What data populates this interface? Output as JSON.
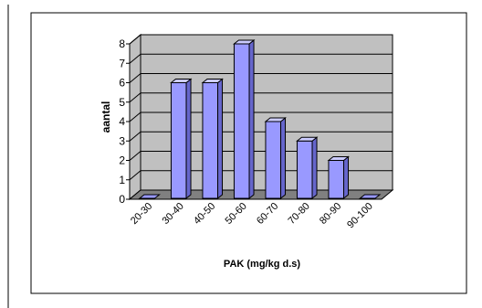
{
  "chart_data": {
    "type": "bar",
    "categories": [
      "20-30",
      "30-40",
      "40-50",
      "50-60",
      "60-70",
      "70-80",
      "80-90",
      "90-100"
    ],
    "values": [
      0,
      6,
      6,
      8,
      4,
      3,
      2,
      0
    ],
    "xlabel": "PAK (mg/kg d.s)",
    "ylabel": "aantal",
    "ylim": [
      0,
      8
    ],
    "yticks": [
      0,
      1,
      2,
      3,
      4,
      5,
      6,
      7,
      8
    ],
    "grid": true,
    "legend": "none",
    "style": "3d",
    "colors": {
      "bar_front": "#9999ff",
      "bar_top": "#ccccff",
      "bar_side": "#6666cc",
      "wall": "#c0c0c0",
      "floor": "#808080",
      "border": "#000000"
    }
  }
}
